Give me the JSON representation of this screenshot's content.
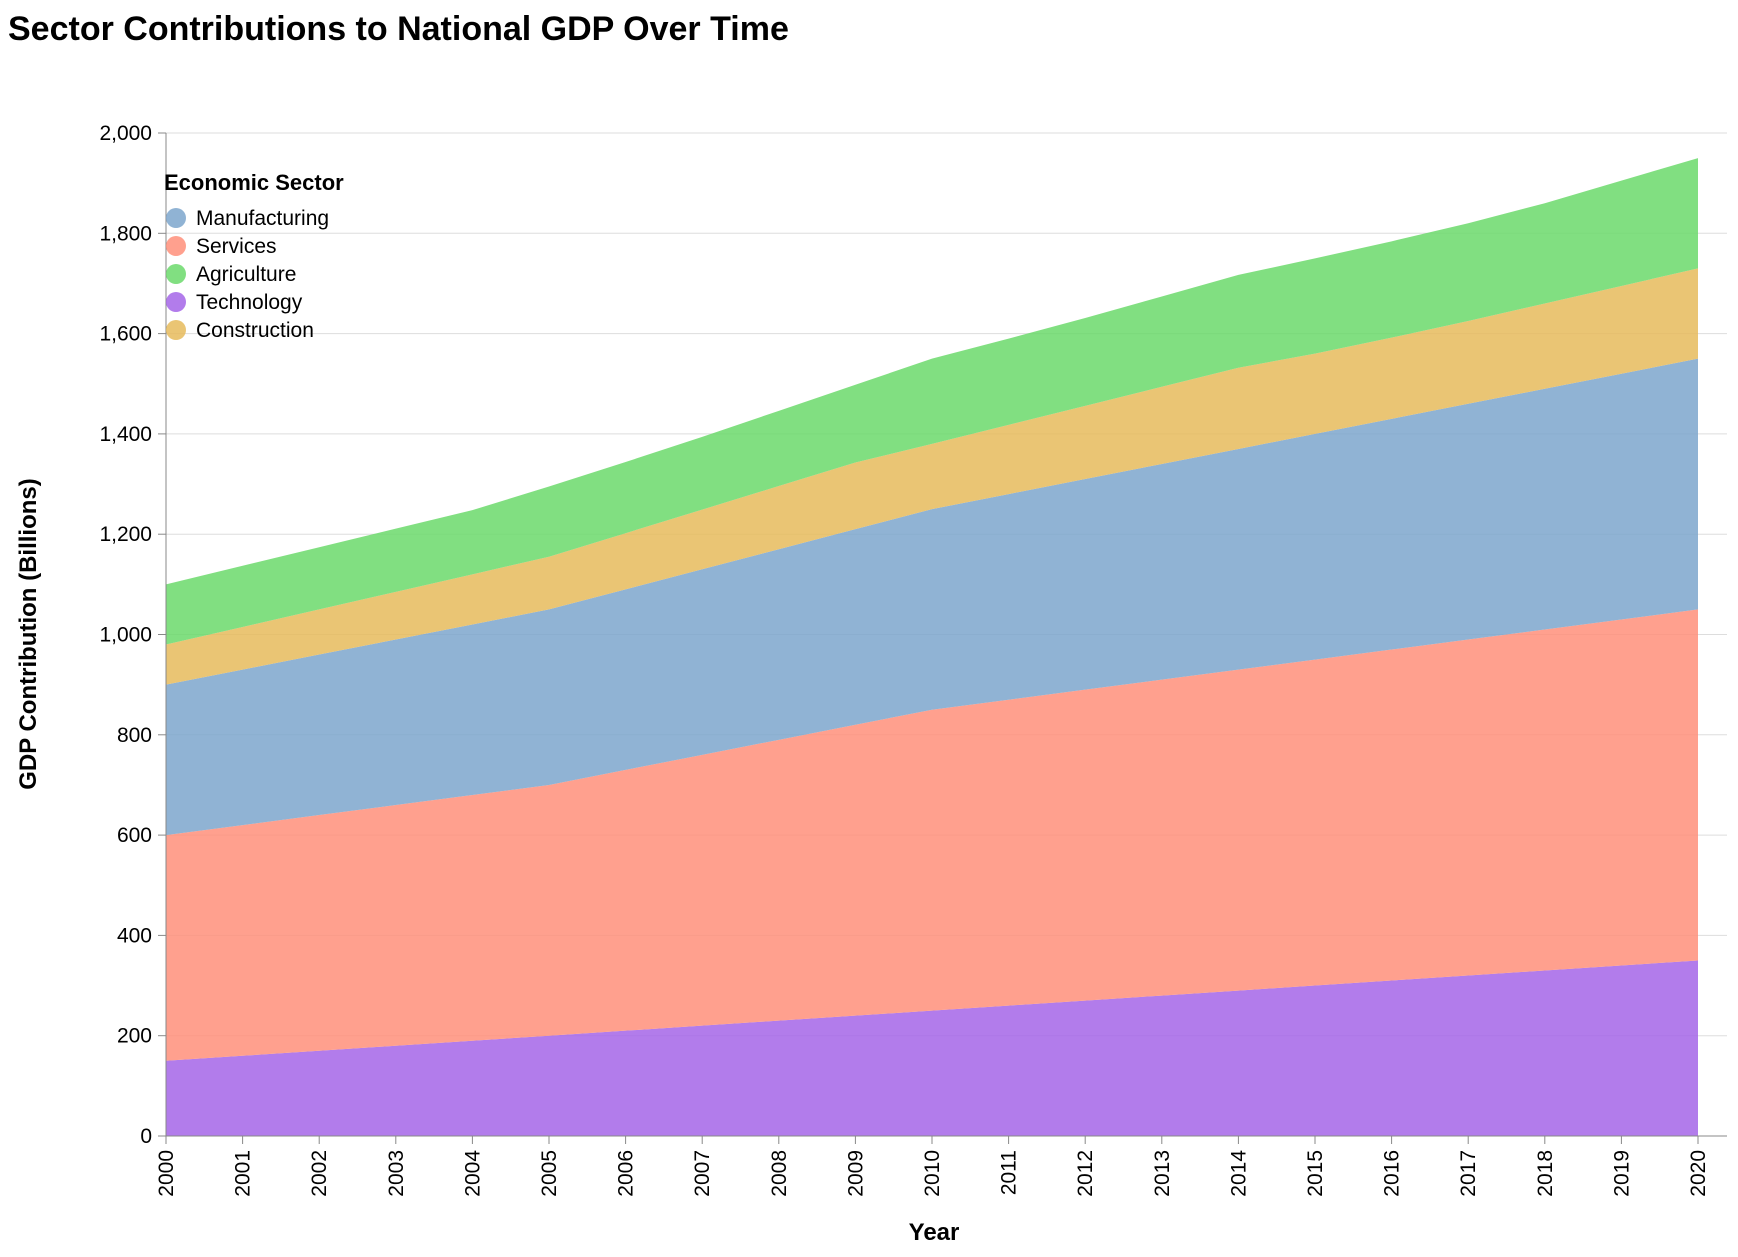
{
  "chart_data": {
    "type": "area",
    "stacked": true,
    "title": "Sector Contributions to National GDP Over Time",
    "xlabel": "Year",
    "ylabel": "GDP Contribution (Billions)",
    "ylim": [
      0,
      2000
    ],
    "yticks": [
      0,
      200,
      400,
      600,
      800,
      1000,
      1200,
      1400,
      1600,
      1800,
      2000
    ],
    "ytick_labels": [
      "0",
      "200",
      "400",
      "600",
      "800",
      "1,000",
      "1,200",
      "1,400",
      "1,600",
      "1,800",
      "2,000"
    ],
    "x": [
      "2000",
      "2001",
      "2002",
      "2003",
      "2004",
      "2005",
      "2006",
      "2007",
      "2008",
      "2009",
      "2010",
      "2011",
      "2012",
      "2013",
      "2014",
      "2015",
      "2016",
      "2017",
      "2018",
      "2019",
      "2020"
    ],
    "grid": true,
    "legend": {
      "title": "Economic Sector",
      "placement": "top-left",
      "entries": [
        "Manufacturing",
        "Services",
        "Agriculture",
        "Technology",
        "Construction"
      ]
    },
    "stack_order": [
      "Technology",
      "Services",
      "Manufacturing",
      "Construction",
      "Agriculture"
    ],
    "series": [
      {
        "name": "Manufacturing",
        "color": "#7ca6cc",
        "values": [
          300,
          310,
          320,
          330,
          340,
          350,
          360,
          370,
          380,
          390,
          400,
          410,
          420,
          430,
          440,
          450,
          460,
          470,
          480,
          490,
          500
        ]
      },
      {
        "name": "Services",
        "color": "#ff8f7a",
        "values": [
          450,
          460,
          470,
          480,
          490,
          500,
          520,
          540,
          560,
          580,
          600,
          610,
          620,
          630,
          640,
          650,
          660,
          670,
          680,
          690,
          700
        ]
      },
      {
        "name": "Agriculture",
        "color": "#6bd96b",
        "values": [
          120,
          122,
          124,
          126,
          128,
          140,
          142,
          145,
          150,
          155,
          170,
          172,
          175,
          180,
          185,
          190,
          192,
          195,
          200,
          210,
          220
        ]
      },
      {
        "name": "Technology",
        "color": "#a565e8",
        "values": [
          150,
          160,
          170,
          180,
          190,
          200,
          210,
          220,
          230,
          240,
          250,
          260,
          270,
          280,
          290,
          300,
          310,
          320,
          330,
          340,
          350
        ]
      },
      {
        "name": "Construction",
        "color": "#e6bb5c",
        "values": [
          80,
          85,
          90,
          95,
          100,
          105,
          112,
          119,
          126,
          133,
          130,
          138,
          146,
          154,
          162,
          160,
          162,
          165,
          170,
          175,
          180
        ]
      }
    ]
  }
}
